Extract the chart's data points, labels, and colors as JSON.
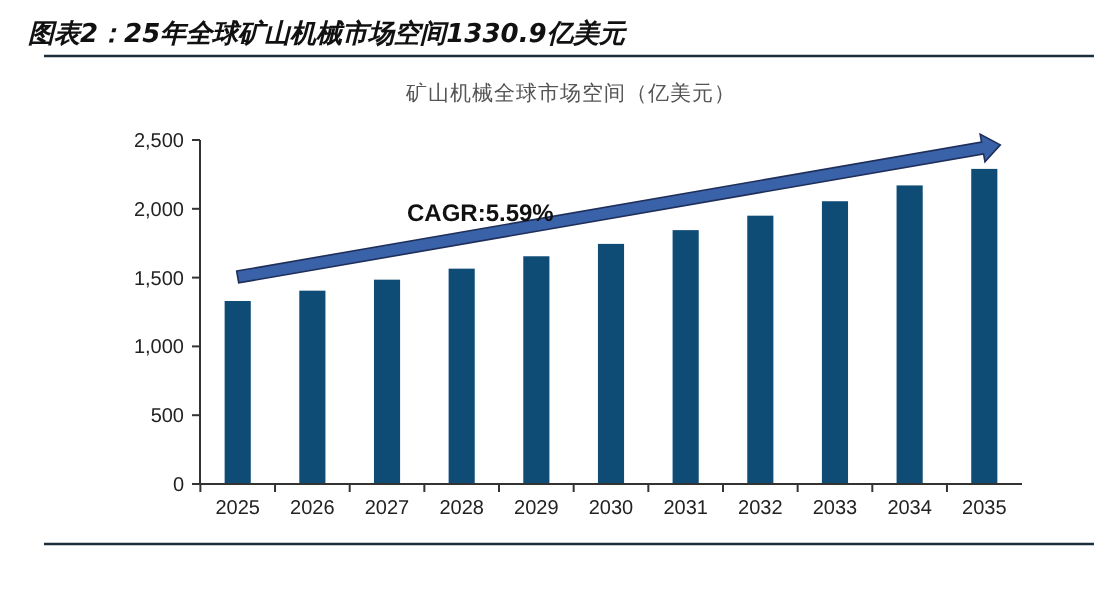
{
  "chart_data": {
    "type": "bar",
    "title": "图表2：25年全球矿山机械市场空间1330.9亿美元",
    "subtitle": "矿山机械全球市场空间（亿美元）",
    "categories": [
      "2025",
      "2026",
      "2027",
      "2028",
      "2029",
      "2030",
      "2031",
      "2032",
      "2033",
      "2034",
      "2035"
    ],
    "values": [
      1330,
      1405,
      1485,
      1565,
      1655,
      1745,
      1845,
      1950,
      2055,
      2170,
      2290
    ],
    "color": "#0f4c75",
    "ylim": [
      0,
      2500
    ],
    "yticks": [
      0,
      {
        "value": 500,
        "label": "500"
      },
      {
        "value": 1000,
        "label": "1,000"
      },
      {
        "value": 1500,
        "label": "1,500"
      },
      {
        "value": 2000,
        "label": "2,000"
      },
      {
        "value": 2500,
        "label": "2,500"
      }
    ],
    "grid": false,
    "annotations": [
      "CAGR:5.59%"
    ]
  }
}
